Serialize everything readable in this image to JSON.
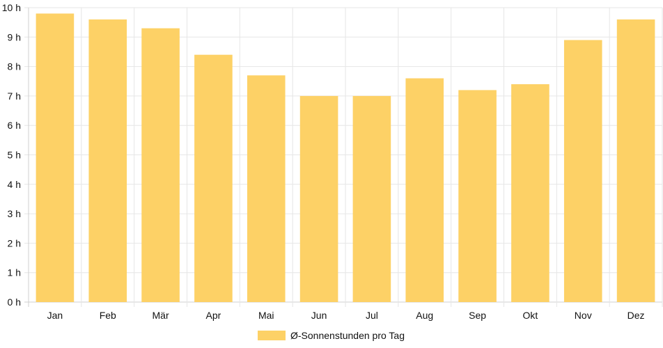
{
  "chart_data": {
    "type": "bar",
    "categories": [
      "Jan",
      "Feb",
      "Mär",
      "Apr",
      "Mai",
      "Jun",
      "Jul",
      "Aug",
      "Sep",
      "Okt",
      "Nov",
      "Dez"
    ],
    "series": [
      {
        "name": "Ø-Sonnenstunden pro Tag",
        "values": [
          9.8,
          9.6,
          9.3,
          8.4,
          7.7,
          7.0,
          7.0,
          7.6,
          7.2,
          7.4,
          8.9,
          9.6
        ],
        "color": "#fdd166"
      }
    ],
    "y_ticks": [
      "0 h",
      "1 h",
      "2 h",
      "3 h",
      "4 h",
      "5 h",
      "6 h",
      "7 h",
      "8 h",
      "9 h",
      "10 h"
    ],
    "ylim": [
      0,
      10
    ],
    "grid": true,
    "legend_position": "bottom"
  }
}
